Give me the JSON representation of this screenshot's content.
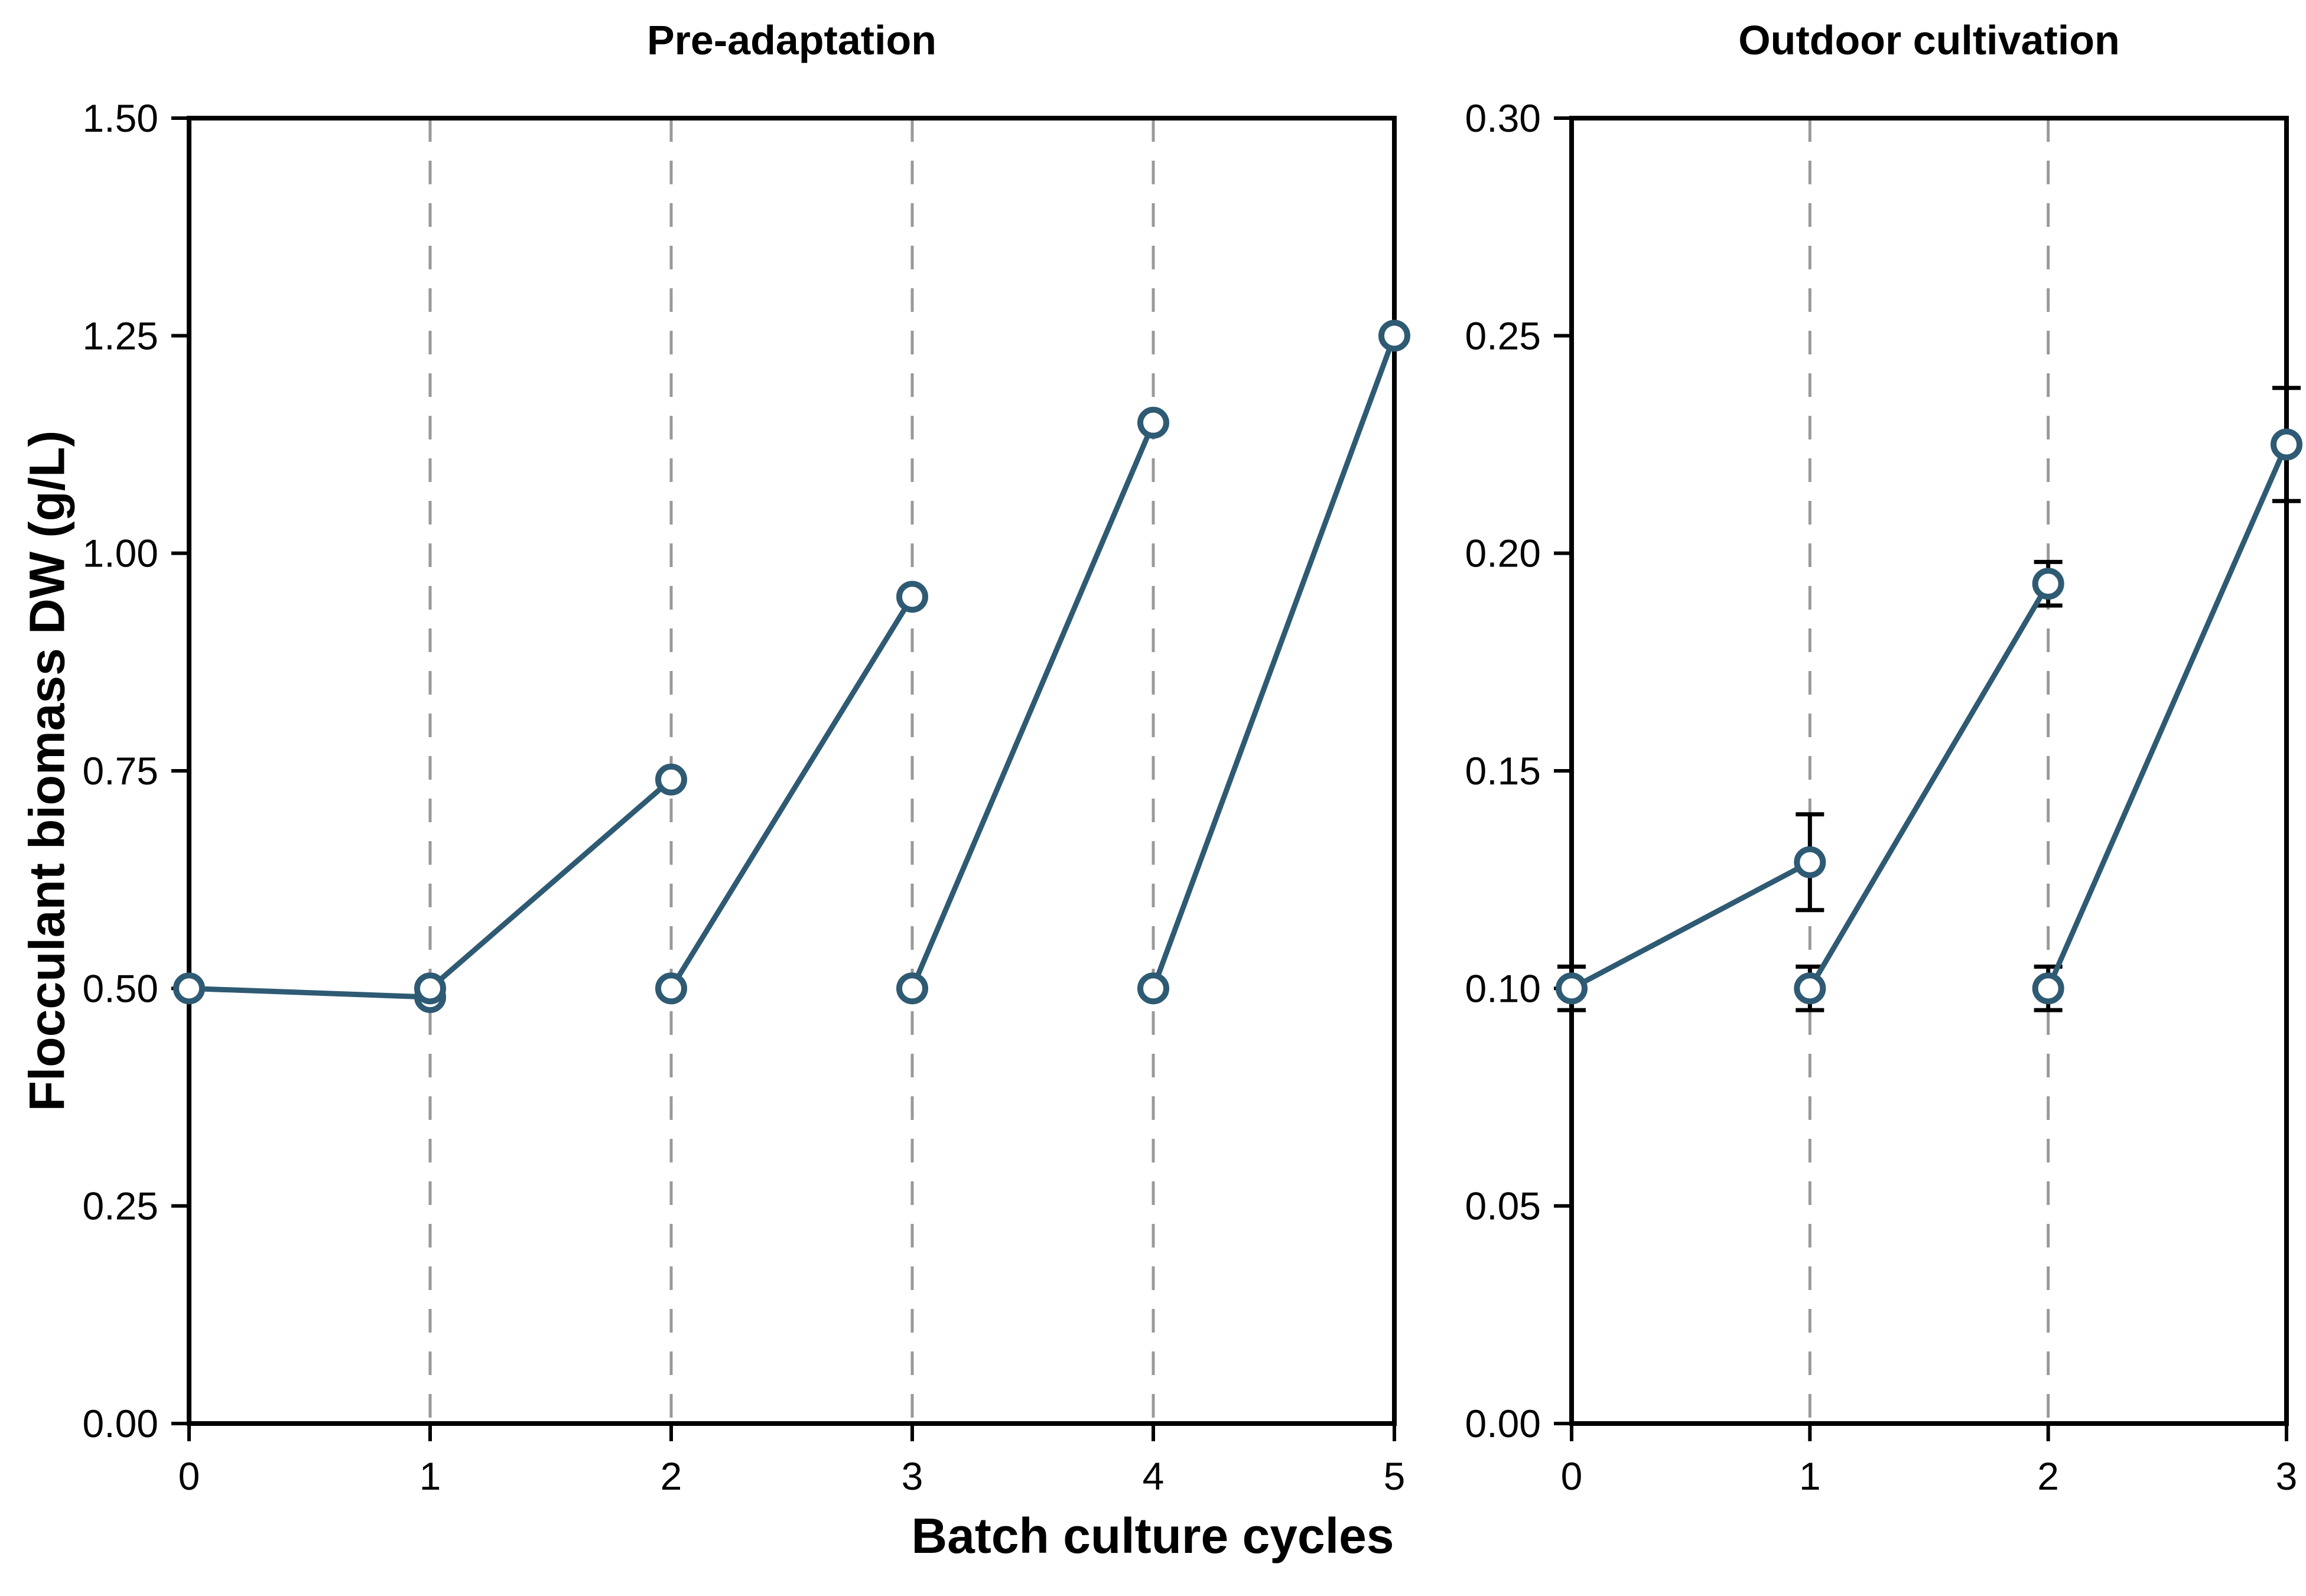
{
  "figure": {
    "shared_xlabel": "Batch culture cycles",
    "shared_ylabel": "Flocculant biomass DW (g/L)"
  },
  "style": {
    "series_color": "#2e5a73",
    "gridline_color": "#999999",
    "axis_color": "#000000",
    "errorbar_color": "#000000",
    "marker_fill": "#ffffff",
    "background": "#ffffff"
  },
  "chart_data": [
    {
      "type": "line",
      "title": "Pre-adaptation",
      "xlabel": "Batch culture cycles",
      "ylabel": "Flocculant biomass DW (g/L)",
      "xlim": [
        0,
        5
      ],
      "ylim": [
        0.0,
        1.5
      ],
      "xticks": [
        0,
        1,
        2,
        3,
        4,
        5
      ],
      "xtick_labels": [
        "0",
        "1",
        "2",
        "3",
        "4",
        "5"
      ],
      "yticks": [
        0.0,
        0.25,
        0.5,
        0.75,
        1.0,
        1.25,
        1.5
      ],
      "ytick_labels": [
        "0.00",
        "0.25",
        "0.50",
        "0.75",
        "1.00",
        "1.25",
        "1.50"
      ],
      "dashed_gridlines_x": [
        1,
        2,
        3,
        4
      ],
      "grid": "vertical-dashed",
      "legend": "none",
      "marker": "open-circle",
      "segments": [
        {
          "points": [
            [
              0,
              0.5
            ],
            [
              1,
              0.49
            ]
          ]
        },
        {
          "points": [
            [
              1,
              0.5
            ],
            [
              2,
              0.74
            ]
          ]
        },
        {
          "points": [
            [
              2,
              0.5
            ],
            [
              3,
              0.95
            ]
          ]
        },
        {
          "points": [
            [
              3,
              0.5
            ],
            [
              4,
              1.15
            ]
          ]
        },
        {
          "points": [
            [
              4,
              0.5
            ],
            [
              5,
              1.25
            ]
          ]
        }
      ]
    },
    {
      "type": "line",
      "title": "Outdoor cultivation",
      "xlabel": "Batch culture cycles",
      "ylabel": "Flocculant biomass DW (g/L)",
      "xlim": [
        0,
        3
      ],
      "ylim": [
        0.0,
        0.3
      ],
      "xticks": [
        0,
        1,
        2,
        3
      ],
      "xtick_labels": [
        "0",
        "1",
        "2",
        "3"
      ],
      "yticks": [
        0.0,
        0.05,
        0.1,
        0.15,
        0.2,
        0.25,
        0.3
      ],
      "ytick_labels": [
        "0.00",
        "0.05",
        "0.10",
        "0.15",
        "0.20",
        "0.25",
        "0.30"
      ],
      "dashed_gridlines_x": [
        1,
        2
      ],
      "grid": "vertical-dashed",
      "legend": "none",
      "marker": "open-circle",
      "segments": [
        {
          "points": [
            [
              0,
              0.1
            ],
            [
              1,
              0.129
            ]
          ],
          "errors": [
            0.005,
            0.011
          ]
        },
        {
          "points": [
            [
              1,
              0.1
            ],
            [
              2,
              0.193
            ]
          ],
          "errors": [
            0.005,
            0.005
          ]
        },
        {
          "points": [
            [
              2,
              0.1
            ],
            [
              3,
              0.225
            ]
          ],
          "errors": [
            0.005,
            0.013
          ]
        }
      ]
    }
  ]
}
